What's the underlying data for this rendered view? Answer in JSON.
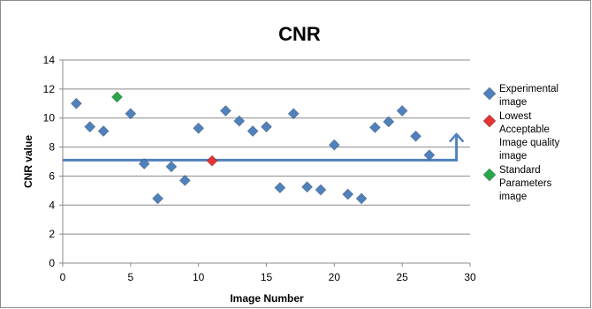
{
  "chart_data": {
    "type": "scatter",
    "title": "CNR",
    "xlabel": "Image Number",
    "ylabel": "CNR value",
    "xlim": [
      0,
      30
    ],
    "ylim": [
      0,
      14
    ],
    "xticks": [
      0,
      5,
      10,
      15,
      20,
      25,
      30
    ],
    "yticks": [
      0,
      2,
      4,
      6,
      8,
      10,
      12,
      14
    ],
    "grid": "horizontal",
    "legend_position": "right",
    "series": [
      {
        "name": "Experimental image",
        "legend_lines": [
          "Experimental",
          "image"
        ],
        "color": "#4f81bd",
        "marker": "diamond",
        "points": [
          [
            1,
            11.0
          ],
          [
            2,
            9.4
          ],
          [
            3,
            9.1
          ],
          [
            5,
            10.3
          ],
          [
            6,
            6.85
          ],
          [
            7,
            4.45
          ],
          [
            8,
            6.65
          ],
          [
            9,
            5.7
          ],
          [
            10,
            9.3
          ],
          [
            12,
            10.5
          ],
          [
            13,
            9.8
          ],
          [
            14,
            9.1
          ],
          [
            15,
            9.4
          ],
          [
            16,
            5.2
          ],
          [
            17,
            10.3
          ],
          [
            18,
            5.25
          ],
          [
            19,
            5.05
          ],
          [
            20,
            8.15
          ],
          [
            21,
            4.75
          ],
          [
            22,
            4.45
          ],
          [
            23,
            9.35
          ],
          [
            24,
            9.75
          ],
          [
            25,
            10.5
          ],
          [
            26,
            8.75
          ],
          [
            27,
            7.45
          ]
        ]
      },
      {
        "name": "Lowest Acceptable Image quality image",
        "legend_lines": [
          "Lowest",
          "Acceptable",
          "Image quality",
          "image"
        ],
        "color": "#e33434",
        "marker": "diamond",
        "points": [
          [
            11,
            7.05
          ]
        ]
      },
      {
        "name": "Standard Parameters image",
        "legend_lines": [
          "Standard",
          "Parameters",
          "image"
        ],
        "color": "#2aa74a",
        "marker": "diamond",
        "points": [
          [
            4,
            11.45
          ]
        ]
      }
    ],
    "annotation_arrow": {
      "color": "#4f81bd",
      "path": [
        [
          0,
          7.1
        ],
        [
          29,
          7.1
        ],
        [
          29,
          8.9
        ]
      ]
    }
  }
}
